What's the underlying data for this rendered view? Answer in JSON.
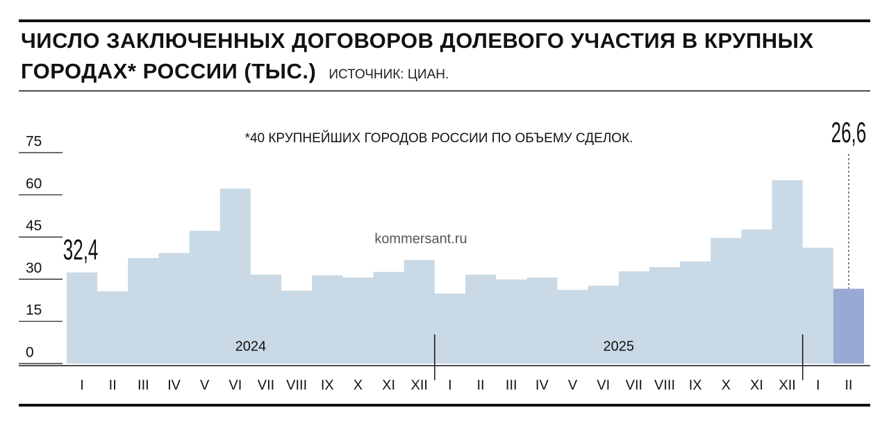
{
  "chart_data": {
    "type": "bar",
    "title": "ЧИСЛО ЗАКЛЮЧЕННЫХ ДОГОВОРОВ ДОЛЕВОГО УЧАСТИЯ В КРУПНЫХ ГОРОДАХ* РОССИИ (ТЫС.)",
    "source": "ИСТОЧНИК: ЦИАН.",
    "footnote": "*40 КРУПНЕЙШИХ ГОРОДОВ РОССИИ ПО ОБЪЕМУ СДЕЛОК.",
    "watermark": "kommersant.ru",
    "categories": [
      "I",
      "II",
      "III",
      "IV",
      "V",
      "VI",
      "VII",
      "VIII",
      "IX",
      "X",
      "XI",
      "XII",
      "I",
      "II",
      "III",
      "IV",
      "V",
      "VI",
      "VII",
      "VIII",
      "IX",
      "X",
      "XI",
      "XII",
      "I",
      "II"
    ],
    "year_labels": [
      "2024",
      "2025"
    ],
    "values": [
      32.4,
      25.7,
      37.5,
      39.3,
      47.2,
      62.2,
      31.6,
      25.9,
      31.4,
      30.6,
      32.6,
      36.8,
      24.9,
      31.6,
      29.9,
      30.6,
      26.2,
      27.7,
      32.8,
      34.3,
      36.3,
      44.7,
      47.7,
      65.2,
      41.2,
      26.6
    ],
    "value_labels": [
      "32,4",
      null,
      null,
      null,
      null,
      null,
      null,
      null,
      null,
      null,
      null,
      null,
      null,
      null,
      null,
      null,
      null,
      null,
      null,
      null,
      null,
      null,
      null,
      null,
      null,
      "26,6"
    ],
    "color": "#c9d9e6",
    "highlight_color": "#98a9d3",
    "ylim": [
      0,
      75
    ],
    "yticks": [
      0,
      15,
      30,
      45,
      60,
      75
    ]
  }
}
